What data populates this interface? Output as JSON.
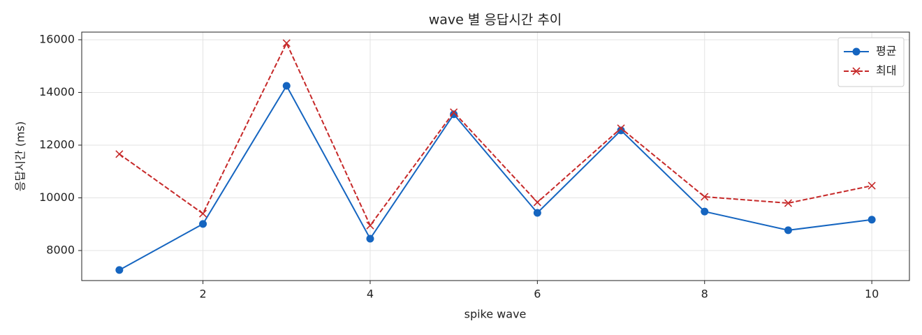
{
  "chart_data": {
    "type": "line",
    "title": "wave 별 응답시간 추이",
    "x_label": "spike wave",
    "y_label": "응답시간 (ms)",
    "x": [
      1,
      2,
      3,
      4,
      5,
      6,
      7,
      8,
      9,
      10
    ],
    "series": [
      {
        "name": "평균",
        "color": "#1565c0",
        "marker": "circle",
        "dash": "solid",
        "values": [
          7260,
          9010,
          14250,
          8450,
          13170,
          9430,
          12560,
          9480,
          8770,
          9170
        ]
      },
      {
        "name": "최대",
        "color": "#c62828",
        "marker": "x",
        "dash": "dashed",
        "values": [
          11660,
          9400,
          15870,
          8950,
          13250,
          9830,
          12640,
          10040,
          9800,
          10460
        ]
      }
    ],
    "xlim": [
      0.55,
      10.45
    ],
    "xticks": [
      2,
      4,
      6,
      8,
      10
    ],
    "ylim": [
      6860,
      16290
    ],
    "yticks": [
      8000,
      10000,
      12000,
      14000,
      16000
    ],
    "grid": true,
    "legend": "upper right"
  }
}
